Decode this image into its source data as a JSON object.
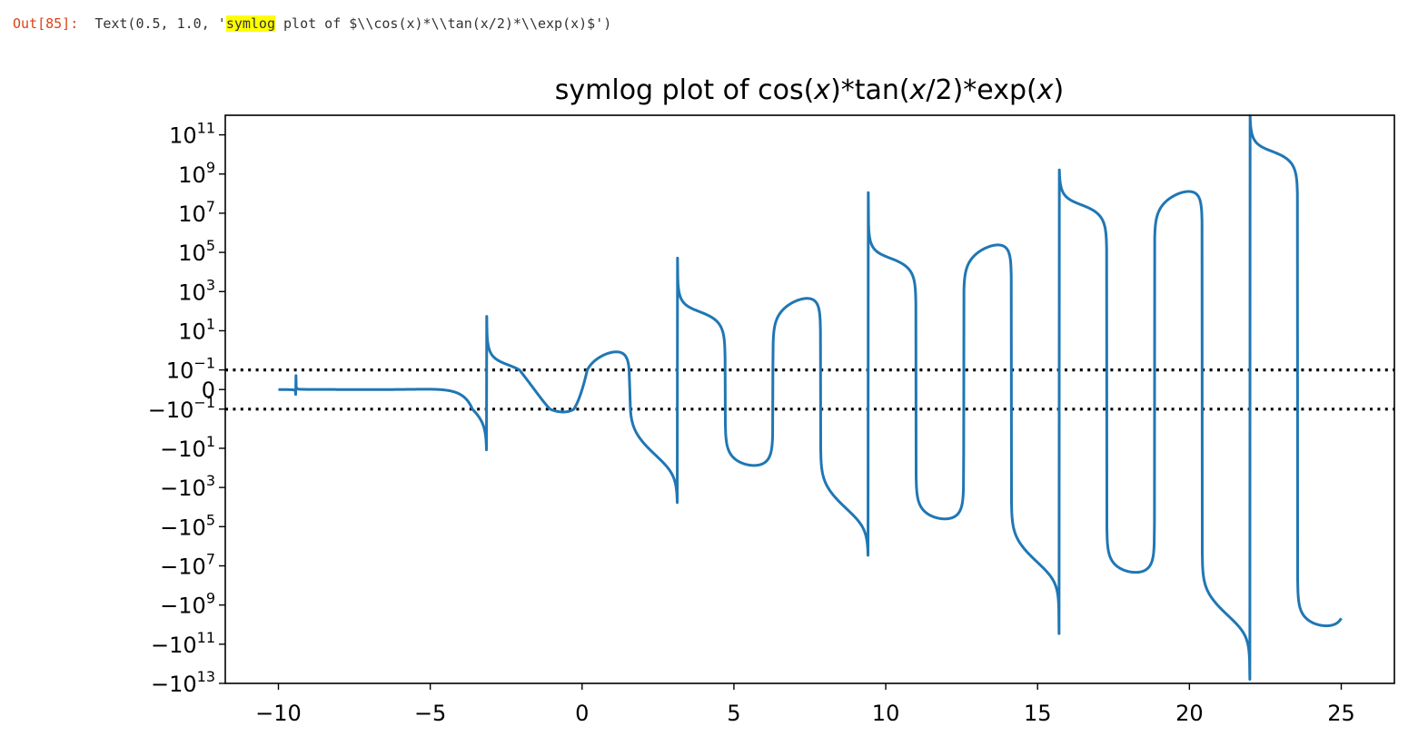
{
  "output_cell": {
    "prompt": "Out[85]:",
    "text_before": "Text(0.5, 1.0, '",
    "highlight": "symlog",
    "text_after": " plot of $\\\\cos(x)*\\\\tan(x/2)*\\\\exp(x)$')"
  },
  "colors": {
    "line": "#1f77b4",
    "threshold": "#000000",
    "prompt": "#d84315",
    "highlight": "#ffff00"
  },
  "chart_data": {
    "type": "line",
    "title": "symlog plot of cos(x)*tan(x/2)*exp(x)",
    "title_parts": {
      "prefix": "symlog plot of cos(",
      "v1": "x",
      "mid1": ")*tan(",
      "v2": "x",
      "mid2": "/2)*exp(",
      "v3": "x",
      "suffix": ")"
    },
    "function": "cos(x)*tan(x/2)*exp(x)",
    "x_range": [
      -10,
      25
    ],
    "xlim": [
      -11.75,
      26.75
    ],
    "y_scale": "symlog",
    "linthresh": 0.1,
    "ylim": [
      -10000000000000.0,
      1000000000000.0
    ],
    "x_ticks": [
      -10,
      -5,
      0,
      5,
      10,
      15,
      20,
      25
    ],
    "x_tick_labels": [
      "−10",
      "−5",
      "0",
      "5",
      "10",
      "15",
      "20",
      "25"
    ],
    "y_ticks": [
      {
        "value": 100000000000.0,
        "base": "10",
        "exp": "11"
      },
      {
        "value": 1000000000.0,
        "base": "10",
        "exp": "9"
      },
      {
        "value": 10000000.0,
        "base": "10",
        "exp": "7"
      },
      {
        "value": 100000.0,
        "base": "10",
        "exp": "5"
      },
      {
        "value": 1000.0,
        "base": "10",
        "exp": "3"
      },
      {
        "value": 10,
        "base": "10",
        "exp": "1"
      },
      {
        "value": 0.1,
        "base": "10",
        "exp": "−1"
      },
      {
        "value": 0,
        "base": "0",
        "exp": ""
      },
      {
        "value": -0.1,
        "base": "−10",
        "exp": "−1"
      },
      {
        "value": -10,
        "base": "−10",
        "exp": "1"
      },
      {
        "value": -1000.0,
        "base": "−10",
        "exp": "3"
      },
      {
        "value": -100000.0,
        "base": "−10",
        "exp": "5"
      },
      {
        "value": -10000000.0,
        "base": "−10",
        "exp": "7"
      },
      {
        "value": -1000000000.0,
        "base": "−10",
        "exp": "9"
      },
      {
        "value": -100000000000.0,
        "base": "−10",
        "exp": "11"
      },
      {
        "value": -10000000000000.0,
        "base": "−10",
        "exp": "13"
      }
    ],
    "hlines": [
      {
        "y": 0.1,
        "style": "dotted"
      },
      {
        "y": -0.1,
        "style": "dotted"
      }
    ],
    "grid": false,
    "legend": false
  }
}
